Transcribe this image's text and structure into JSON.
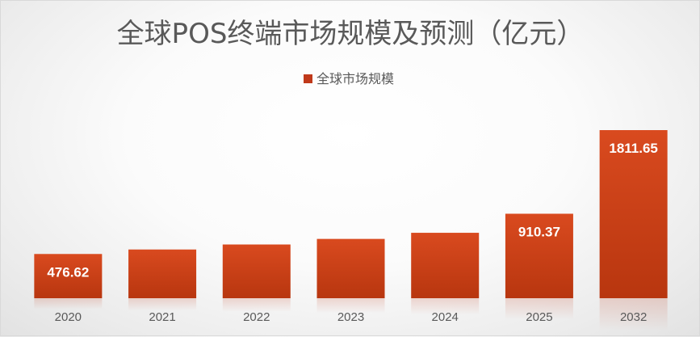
{
  "chart_data": {
    "type": "bar",
    "title": "全球POS终端市场规模及预测（亿元）",
    "legend": {
      "position": "top",
      "entries": [
        "全球市场规模"
      ]
    },
    "categories": [
      "2020",
      "2021",
      "2022",
      "2023",
      "2024",
      "2025",
      "2032"
    ],
    "series": [
      {
        "name": "全球市场规模",
        "values": [
          476.62,
          525,
          579,
          639,
          705,
          910.37,
          1811.65
        ],
        "data_labels": [
          "476.62",
          "",
          "",
          "",
          "",
          "910.37",
          "1811.65"
        ]
      }
    ],
    "ylim": [
      0,
      1811.65
    ],
    "grid": false,
    "colors": {
      "bar_top": "#d94a1f",
      "bar_bottom": "#b8360f",
      "legend_marker": "#c0391a"
    }
  }
}
